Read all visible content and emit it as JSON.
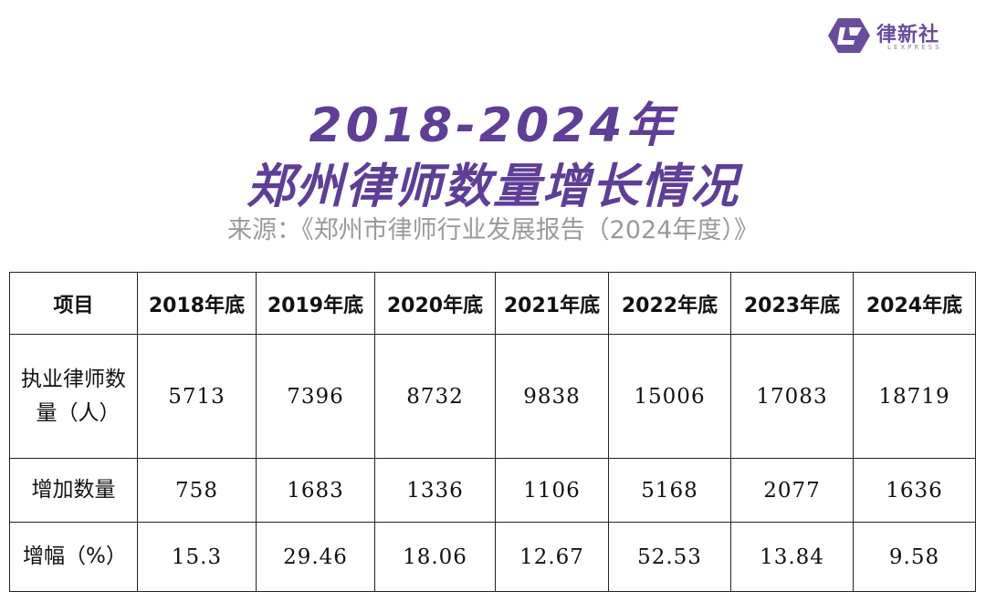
{
  "logo": {
    "name": "律新社",
    "sub": "LEXPRESS",
    "color": "#6a4c9c"
  },
  "title": {
    "line1": "2018-2024年",
    "line2": "郑州律师数量增长情况",
    "color": "#5e3e96"
  },
  "source": "来源：《郑州市律师行业发展报告（2024年度）》",
  "table": {
    "headers": [
      "项目",
      "2018年底",
      "2019年底",
      "2020年底",
      "2021年底",
      "2022年底",
      "2023年底",
      "2024年底"
    ],
    "rows": [
      {
        "label_line1": "执业律师数",
        "label_line2": "量（人）",
        "values": [
          "5713",
          "7396",
          "8732",
          "9838",
          "15006",
          "17083",
          "18719"
        ]
      },
      {
        "label_line1": "增加数量",
        "values": [
          "758",
          "1683",
          "1336",
          "1106",
          "5168",
          "2077",
          "1636"
        ]
      },
      {
        "label_line1": "增幅（%）",
        "values": [
          "15.3",
          "29.46",
          "18.06",
          "12.67",
          "52.53",
          "13.84",
          "9.58"
        ]
      }
    ]
  }
}
